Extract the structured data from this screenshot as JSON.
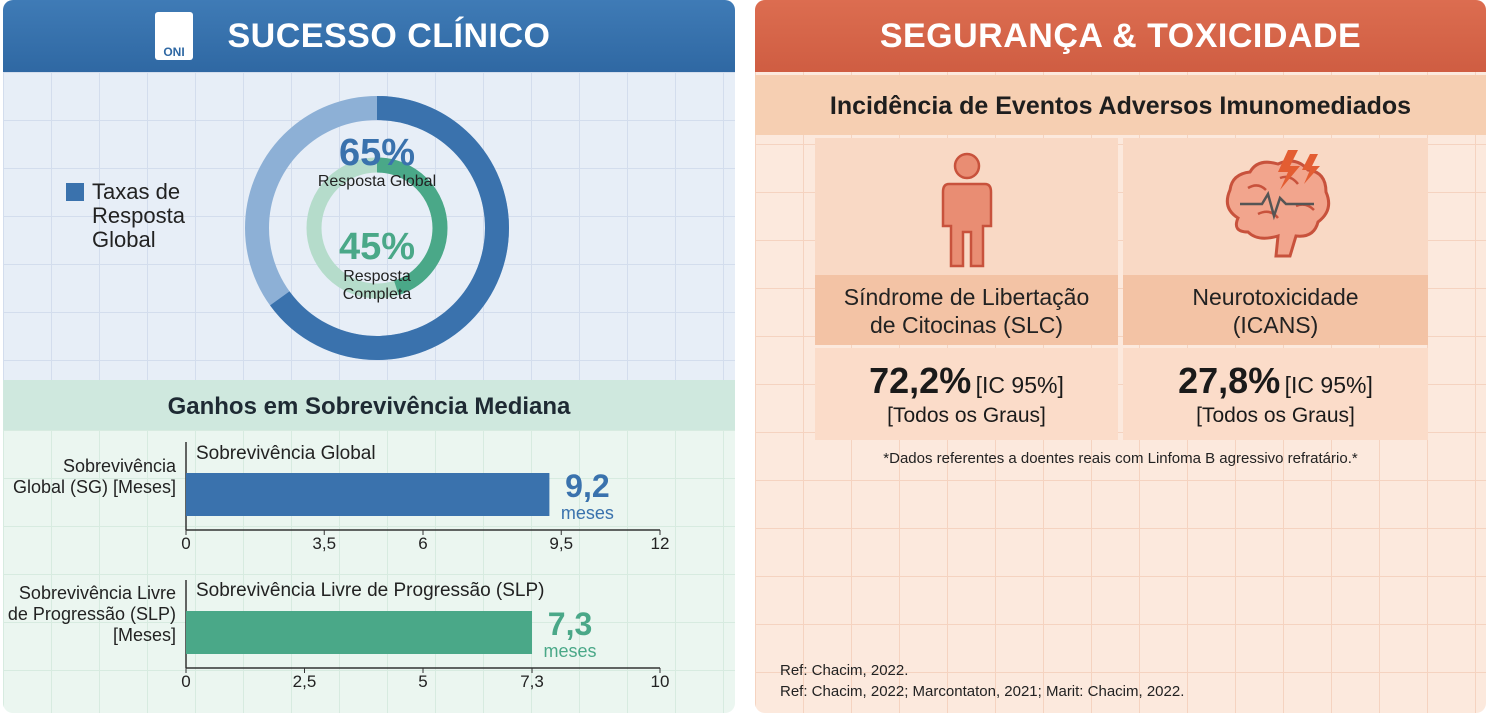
{
  "left_panel": {
    "title": "SUCESSO CLÍNICO",
    "logo_text": "ONI",
    "section_title": "Ganhos em Sobrevivência Mediana"
  },
  "chart_data": [
    {
      "type": "donut",
      "legend_label": "Taxas de Resposta Global",
      "categories": [
        "Resposta Global",
        "Resposta Completa"
      ],
      "values": [
        65,
        45
      ],
      "value_labels": [
        "65%",
        "45%"
      ],
      "colors": [
        "#3a72ad",
        "#4aa888"
      ]
    },
    {
      "type": "hbar",
      "title": "Sobrevivência Global",
      "y_label": "Sobrevivência Global (SG) [Meses]",
      "values": [
        9.2
      ],
      "value_labels": [
        "9,2"
      ],
      "unit_label": "meses",
      "color": "#3a72ad",
      "xlim": [
        0,
        12
      ],
      "xticks": [
        0,
        {
          "value": 3.5,
          "label": "3,5"
        },
        6,
        {
          "value": 9.5,
          "label": "9,5"
        },
        12
      ]
    },
    {
      "type": "hbar",
      "title": "Sobrevivência Livre de Progressão (SLP)",
      "y_label": "Sobrevivência Livre de Progressão (SLP) [Meses]",
      "values": [
        7.3
      ],
      "value_labels": [
        "7,3"
      ],
      "unit_label": "meses",
      "color": "#4aa888",
      "xlim": [
        0,
        10
      ],
      "xticks": [
        0,
        {
          "value": 2.5,
          "label": "2,5"
        },
        5,
        {
          "value": 7.3,
          "label": "7,3"
        },
        10
      ]
    }
  ],
  "right_panel": {
    "title": "SEGURANÇA & TOXICIDADE",
    "subtitle": "Incidência de Eventos Adversos Imunomediados",
    "cards": [
      {
        "label": "Síndrome de Libertação de Citocinas (SLC)",
        "value": "72,2%",
        "ci": "[IC 95%]",
        "grades": "[Todos os Graus]"
      },
      {
        "label": "Neurotoxicidade (ICANS)",
        "value": "27,8%",
        "ci": "[IC 95%]",
        "grades": "[Todos os Graus]"
      }
    ],
    "footnote": "*Dados referentes a doentes reais com Linfoma B agressivo refratário.*",
    "references": [
      "Ref: Chacim, 2022.",
      "Ref: Chacim, 2022; Marcontaton, 2021; Marit: Chacim, 2022."
    ]
  }
}
